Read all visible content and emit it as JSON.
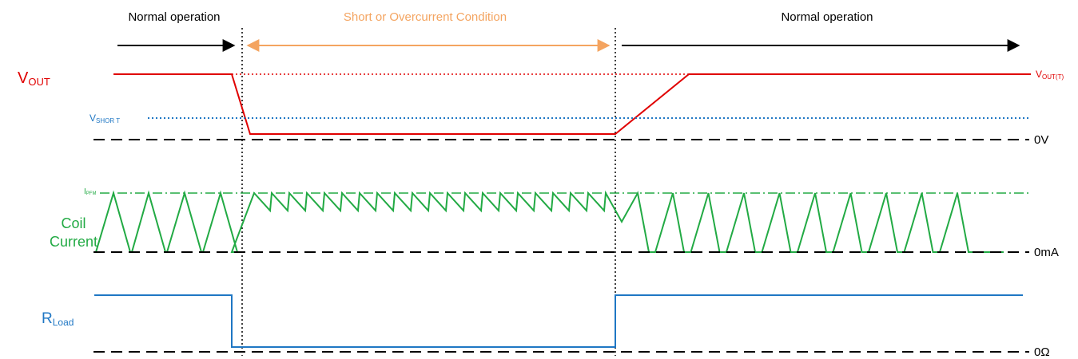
{
  "phases": [
    "Normal operation",
    "Short  or Overcurrent Condition",
    "Normal operation"
  ],
  "labels": {
    "vout": {
      "base": "V",
      "sub": "OUT"
    },
    "vshort": {
      "base": "V",
      "sub": "SHOR T"
    },
    "ipfm": {
      "base": "I",
      "sub": "PFM"
    },
    "coil": [
      "Coil",
      "Current"
    ],
    "rload": {
      "base": "R",
      "sub": "Load"
    },
    "voutt": {
      "base": "V",
      "sub": "OUT(T)"
    },
    "zero_v": "0V",
    "zero_ma": "0mA",
    "zero_ohm": "0Ω"
  }
}
